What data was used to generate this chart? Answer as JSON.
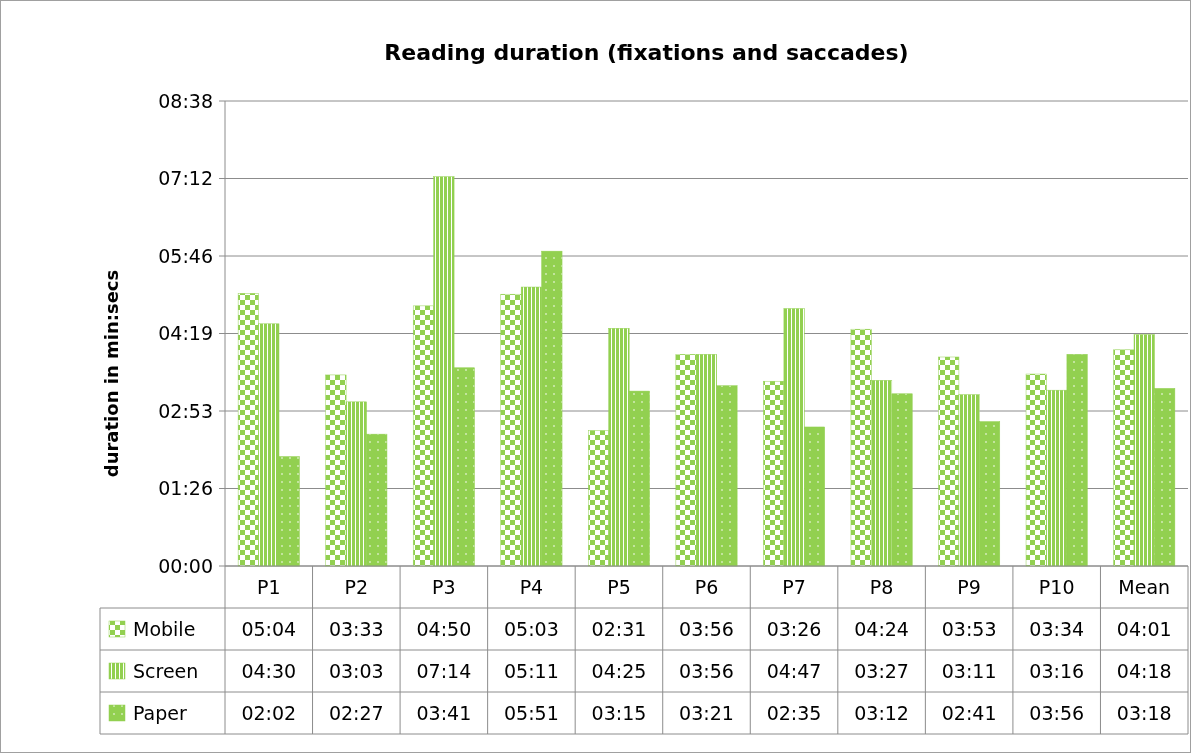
{
  "chart_data": {
    "type": "bar",
    "title": "Reading duration (fixations and saccades)",
    "ylabel": "duration in min:secs",
    "categories": [
      "P1",
      "P2",
      "P3",
      "P4",
      "P5",
      "P6",
      "P7",
      "P8",
      "P9",
      "P10",
      "Mean"
    ],
    "series": [
      {
        "name": "Mobile",
        "color": "#92d050",
        "values": [
          304,
          213,
          290,
          303,
          151,
          236,
          206,
          264,
          233,
          214,
          241
        ],
        "value_labels": [
          "05:04",
          "03:33",
          "04:50",
          "05:03",
          "02:31",
          "03:56",
          "03:26",
          "04:24",
          "03:53",
          "03:34",
          "04:01"
        ]
      },
      {
        "name": "Screen",
        "color": "#92d050",
        "values": [
          270,
          183,
          434,
          311,
          265,
          236,
          287,
          207,
          191,
          196,
          258
        ],
        "value_labels": [
          "04:30",
          "03:03",
          "07:14",
          "05:11",
          "04:25",
          "03:56",
          "04:47",
          "03:27",
          "03:11",
          "03:16",
          "04:18"
        ]
      },
      {
        "name": "Paper",
        "color": "#92d050",
        "values": [
          122,
          147,
          221,
          351,
          195,
          201,
          155,
          192,
          161,
          236,
          198
        ],
        "value_labels": [
          "02:02",
          "02:27",
          "03:41",
          "05:51",
          "03:15",
          "03:21",
          "02:35",
          "03:12",
          "02:41",
          "03:56",
          "03:18"
        ]
      }
    ],
    "ylim": [
      0,
      518.4
    ],
    "yticks": [
      {
        "value": 0,
        "label": "00:00"
      },
      {
        "value": 86.4,
        "label": "01:26"
      },
      {
        "value": 172.8,
        "label": "02:53"
      },
      {
        "value": 259.2,
        "label": "04:19"
      },
      {
        "value": 345.6,
        "label": "05:46"
      },
      {
        "value": 432,
        "label": "07:12"
      },
      {
        "value": 518.4,
        "label": "08:38"
      }
    ],
    "grid": "y",
    "legend": "bottom"
  }
}
